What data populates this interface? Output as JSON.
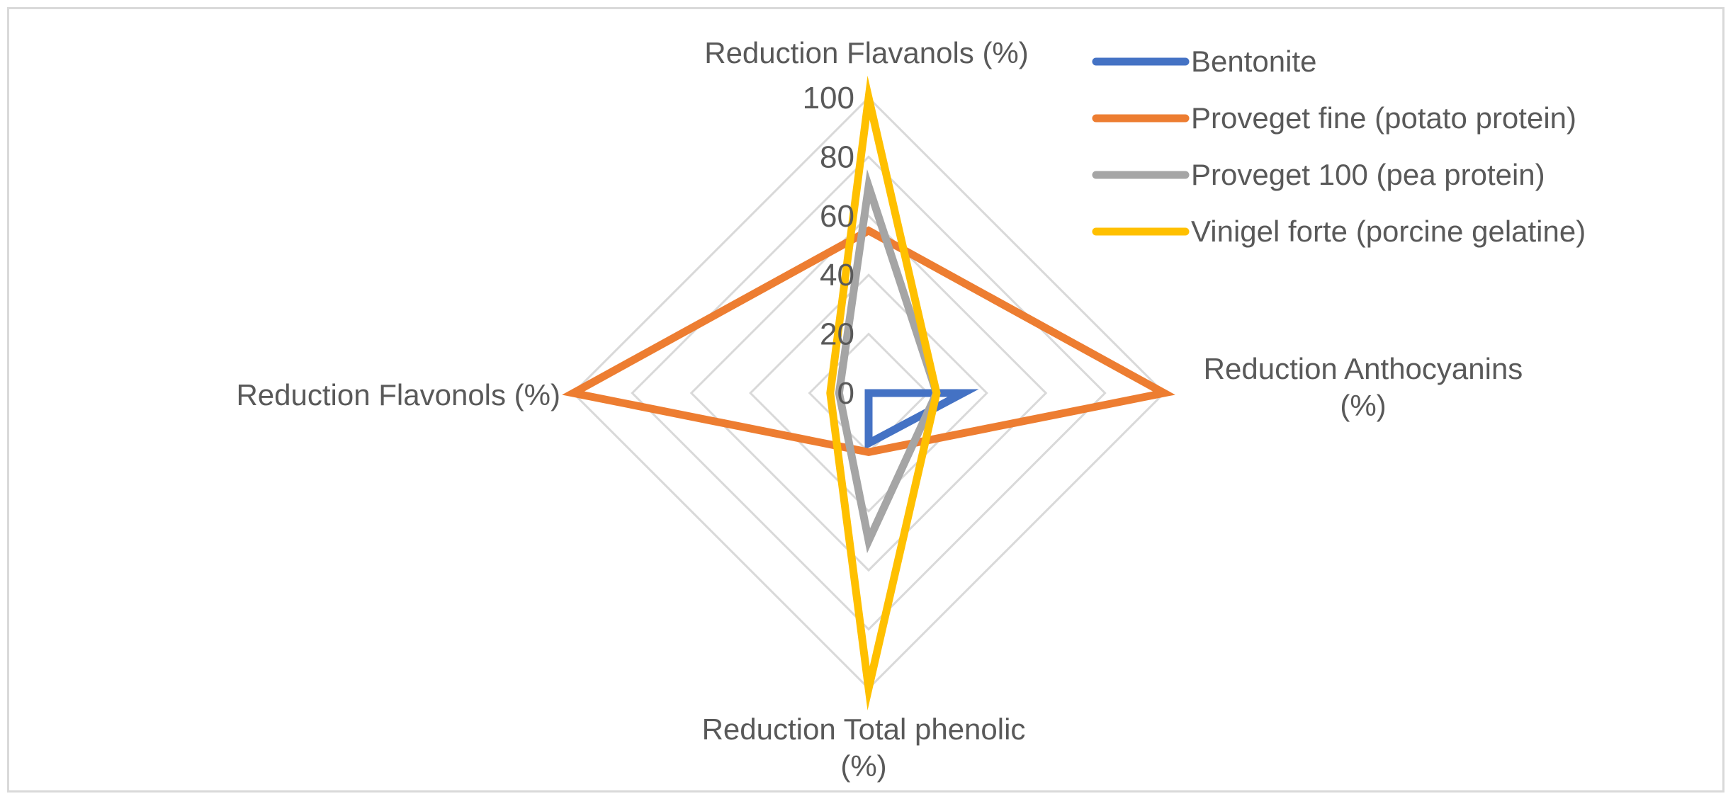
{
  "chart_data": {
    "type": "radar",
    "axes": [
      {
        "lines": [
          "Reduction Flavanols (%)"
        ]
      },
      {
        "lines": [
          "Reduction Anthocyanins",
          "(%)"
        ]
      },
      {
        "lines": [
          "Reduction Total phenolic",
          "(%)"
        ]
      },
      {
        "lines": [
          "Reduction Flavonols (%)"
        ]
      }
    ],
    "range": [
      0,
      100
    ],
    "ticks": [
      "0",
      "20",
      "40",
      "60",
      "80",
      "100"
    ],
    "series": [
      {
        "name": "Bentonite",
        "color": "#4472C4",
        "values": [
          0,
          32,
          17,
          0
        ]
      },
      {
        "name": "Proveget fine (potato protein)",
        "color": "#ED7D31",
        "values": [
          55,
          100,
          20,
          100
        ]
      },
      {
        "name": "Proveget 100 (pea protein)",
        "color": "#A5A5A5",
        "values": [
          70,
          23,
          50,
          10
        ]
      },
      {
        "name": "Vinigel forte (porcine gelatine)",
        "color": "#FFC000",
        "values": [
          100,
          23,
          100,
          13
        ]
      }
    ],
    "legend_position": "top-right",
    "grid_color": "#d9d9d9",
    "text_color": "#595959"
  }
}
